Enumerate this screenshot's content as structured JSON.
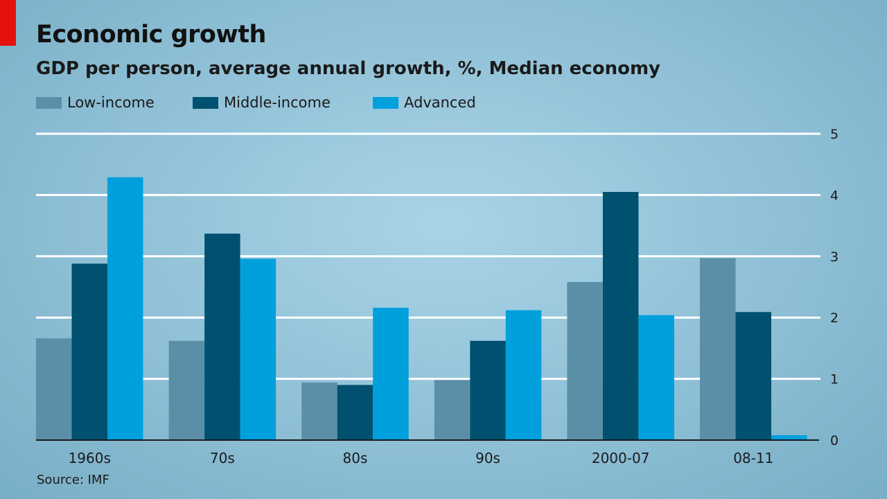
{
  "header": {
    "title": "Economic growth",
    "subtitle": "GDP per person, average annual growth, %, Median economy"
  },
  "legend": [
    {
      "label": "Low-income",
      "color": "#5b8fa8"
    },
    {
      "label": "Middle-income",
      "color": "#00506f"
    },
    {
      "label": "Advanced",
      "color": "#00a0dc"
    }
  ],
  "footer": {
    "source": "Source: IMF"
  },
  "chart_data": {
    "type": "bar",
    "title": "Economic growth",
    "subtitle": "GDP per person, average annual growth, %, Median economy",
    "categories": [
      "1960s",
      "70s",
      "80s",
      "90s",
      "2000-07",
      "08-11"
    ],
    "series": [
      {
        "name": "Low-income",
        "color": "#5b8fa8",
        "values": [
          1.66,
          1.62,
          0.94,
          0.98,
          2.58,
          2.97
        ]
      },
      {
        "name": "Middle-income",
        "color": "#00506f",
        "values": [
          2.88,
          3.37,
          0.9,
          1.62,
          4.05,
          2.09
        ]
      },
      {
        "name": "Advanced",
        "color": "#00a0dc",
        "values": [
          4.29,
          2.96,
          2.16,
          2.12,
          2.04,
          0.08
        ]
      }
    ],
    "ylim": [
      0,
      5
    ],
    "yticks": [
      0,
      1,
      2,
      3,
      4,
      5
    ],
    "y_axis_side": "right",
    "grid": true,
    "legend_position": "top-left",
    "source": "Source: IMF"
  }
}
